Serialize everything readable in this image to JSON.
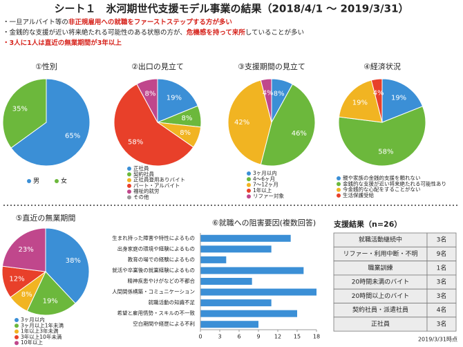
{
  "title": "シート１　氷河期世代支援モデル事業の結果（2018/4/1 ～ 2019/3/31）",
  "notes": [
    [
      {
        "text": "・一旦アルバイト等の",
        "highlight": false
      },
      {
        "text": "非正規雇用への就職をファーストステップする方が多い",
        "highlight": true
      }
    ],
    [
      {
        "text": "・金銭的な支援が近い将来絶たれる可能性のある状態の方が、",
        "highlight": false
      },
      {
        "text": "危機感を持って来所",
        "highlight": true
      },
      {
        "text": "していることが多い",
        "highlight": false
      }
    ],
    [
      {
        "text": "・3人に1人は直近の無業期間が3年以上",
        "highlight": true
      }
    ]
  ],
  "chart_data": [
    {
      "type": "pie",
      "title": "①性別",
      "categories": [
        "男",
        "女"
      ],
      "values": [
        65,
        35
      ],
      "value_labels": [
        "65%",
        "35%"
      ],
      "colors": [
        "#3b8fd6",
        "#6cb83c"
      ]
    },
    {
      "type": "pie",
      "title": "②出口の見立て",
      "categories": [
        "正社員",
        "契約社員",
        "正社員登用ありバイト",
        "パート・アルバイト",
        "福祉的就労",
        "その他"
      ],
      "values": [
        19,
        8,
        8,
        58,
        8,
        0
      ],
      "value_labels": [
        "19%",
        "8%",
        "8%",
        "58%",
        "8%",
        null
      ],
      "colors": [
        "#3b8fd6",
        "#6cb83c",
        "#f1b422",
        "#e8402a",
        "#c0478c",
        "#9a9a9a"
      ]
    },
    {
      "type": "pie",
      "title": "③支援期間の見立て",
      "categories": [
        "3ヶ月以内",
        "4～6ヶ月",
        "7～12ヶ月",
        "1年以上",
        "リファー対象"
      ],
      "values": [
        8,
        46,
        42,
        0,
        4
      ],
      "value_labels": [
        "8%",
        "46%",
        "42%",
        null,
        "4%"
      ],
      "colors": [
        "#3b8fd6",
        "#6cb83c",
        "#f1b422",
        "#e8402a",
        "#c0478c"
      ]
    },
    {
      "type": "pie",
      "title": "④経済状況",
      "categories": [
        "親や家族の金銭的支援を頼れない",
        "金銭的な支援が近い将来絶たれる可能性あり",
        "今金銭的な心配をすることがない",
        "生活保護受給"
      ],
      "values": [
        19,
        58,
        19,
        4
      ],
      "value_labels": [
        "19%",
        "58%",
        "19%",
        "4%"
      ],
      "colors": [
        "#3b8fd6",
        "#6cb83c",
        "#f1b422",
        "#e8402a"
      ]
    },
    {
      "type": "pie",
      "title": "⑤直近の無業期間",
      "categories": [
        "3ヶ月以内",
        "3ヶ月以上1年未満",
        "1年以上3年未満",
        "3年以上10年未満",
        "10年以上"
      ],
      "values": [
        38,
        19,
        8,
        12,
        23
      ],
      "value_labels": [
        "38%",
        "19%",
        "8%",
        "12%",
        "23%"
      ],
      "colors": [
        "#3b8fd6",
        "#6cb83c",
        "#f1b422",
        "#e8402a",
        "#c0478c"
      ]
    },
    {
      "type": "hbar",
      "title": "⑥就職への阻害要因(複数回答)",
      "categories": [
        "生まれ持った障害や特性によるもの",
        "出身家庭の環境や経験によるもの",
        "教育の場での経験によるもの",
        "就活や卒業後の就業経験によるもの",
        "精神疾患やけがなどの不都合",
        "人間関係構築・コミュニケーション",
        "就職活動の知識不足",
        "希望と雇用情勢・スキルの不一致",
        "空白期間や経歴による不利"
      ],
      "values": [
        14,
        11,
        4,
        16,
        8,
        18,
        11,
        15,
        9
      ],
      "color": "#3b8fd6",
      "xlim": [
        0,
        18
      ],
      "xticks": [
        0,
        3,
        6,
        9,
        12,
        15,
        18
      ]
    }
  ],
  "table": {
    "title": "支援結果（n=26）",
    "rows": [
      [
        "就職活動継続中",
        "3名"
      ],
      [
        "リファー・利用中断・不明",
        "9名"
      ],
      [
        "職業訓練",
        "1名"
      ],
      [
        "20時間未満のバイト",
        "3名"
      ],
      [
        "20時間以上のバイト",
        "3名"
      ],
      [
        "契約社員・派遣社員",
        "4名"
      ],
      [
        "正社員",
        "3名"
      ]
    ]
  },
  "footnote": "2019/3/31時点"
}
